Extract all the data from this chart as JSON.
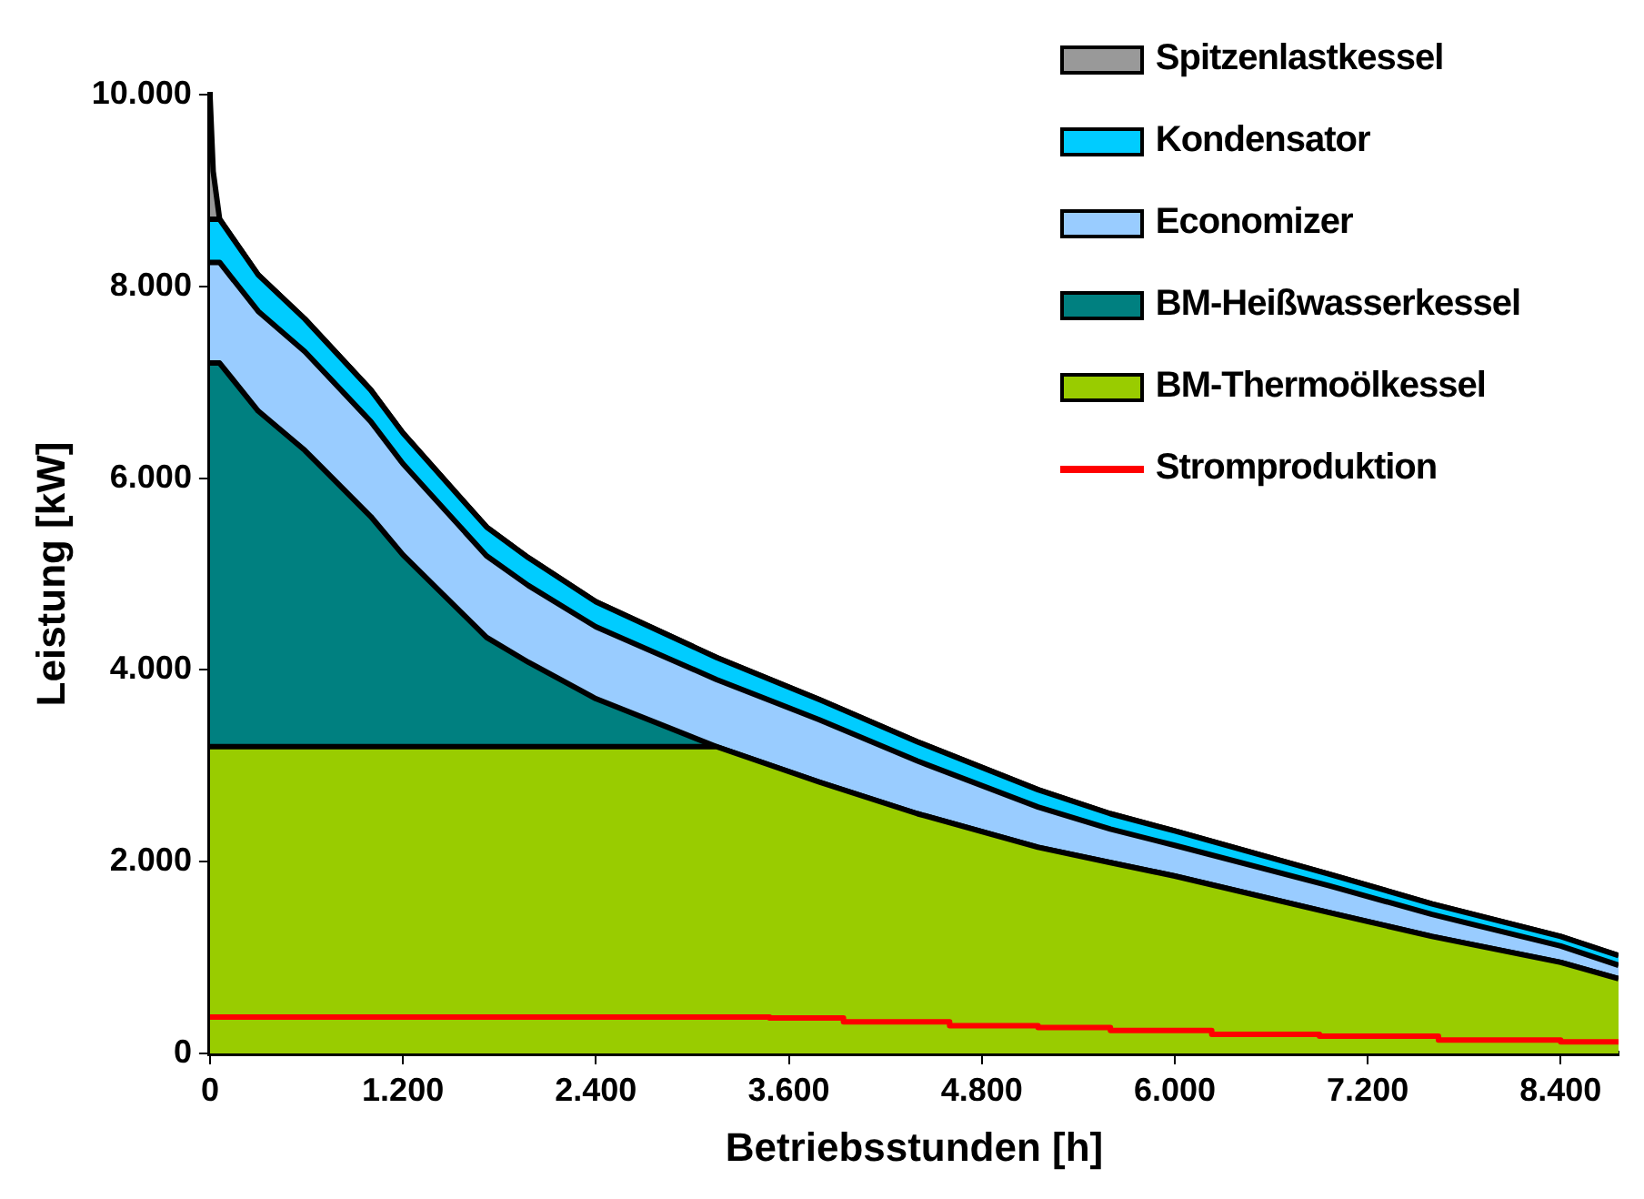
{
  "chart_data": {
    "type": "area",
    "stacked": true,
    "xlabel": "Betriebsstunden [h]",
    "ylabel": "Leistung [kW]",
    "legend": "top right",
    "x": [
      0,
      20,
      60,
      300,
      590,
      1000,
      1200,
      1720,
      1980,
      2400,
      3150,
      3790,
      4400,
      5150,
      5600,
      6000,
      6960,
      7600,
      8400,
      8760
    ],
    "xlim": [
      0,
      8760
    ],
    "xticks": [
      0,
      {
        "value": 1200,
        "label": "1.200"
      },
      {
        "value": 2400,
        "label": "2.400"
      },
      {
        "value": 3600,
        "label": "3.600"
      },
      {
        "value": 4800,
        "label": "4.800"
      },
      {
        "value": 6000,
        "label": "6.000"
      },
      {
        "value": 7200,
        "label": "7.200"
      },
      {
        "value": 8400,
        "label": "8.400"
      }
    ],
    "ylim": [
      0,
      10000
    ],
    "yticks": [
      0,
      {
        "value": 2000,
        "label": "2.000"
      },
      {
        "value": 4000,
        "label": "4.000"
      },
      {
        "value": 6000,
        "label": "6.000"
      },
      {
        "value": 8000,
        "label": "8.000"
      },
      {
        "value": 10000,
        "label": "10.000"
      }
    ],
    "series": [
      {
        "name": "BM-Thermoölkessel",
        "color": "#99cc00",
        "values": [
          3200,
          3200,
          3200,
          3200,
          3200,
          3200,
          3200,
          3200,
          3200,
          3200,
          3200,
          2830,
          2500,
          2150,
          1990,
          1850,
          1470,
          1220,
          950,
          780
        ]
      },
      {
        "name": "BM-Heißwasserkessel",
        "color": "#008080",
        "values": [
          4000,
          4000,
          4000,
          3500,
          3090,
          2400,
          2000,
          1140,
          880,
          500,
          0,
          0,
          0,
          0,
          0,
          0,
          0,
          0,
          0,
          0
        ]
      },
      {
        "name": "Economizer",
        "color": "#99ccff",
        "values": [
          1050,
          1050,
          1050,
          1040,
          1030,
          990,
          950,
          850,
          800,
          750,
          700,
          650,
          550,
          420,
          350,
          320,
          280,
          230,
          170,
          140
        ]
      },
      {
        "name": "Kondensator",
        "color": "#00ccff",
        "values": [
          450,
          450,
          450,
          380,
          340,
          330,
          320,
          300,
          290,
          260,
          230,
          210,
          200,
          180,
          160,
          150,
          120,
          110,
          100,
          100
        ]
      },
      {
        "name": "Spitzenlastkessel",
        "color": "#999999",
        "values": [
          1300,
          500,
          0,
          0,
          0,
          0,
          0,
          0,
          0,
          0,
          0,
          0,
          0,
          0,
          0,
          0,
          0,
          0,
          0,
          0
        ]
      },
      {
        "name": "Stromproduktion",
        "color": "#ff0000",
        "type": "step",
        "x": [
          0,
          3480,
          3940,
          4600,
          5150,
          5600,
          6230,
          6900,
          7640,
          8400,
          8760
        ],
        "values": [
          400,
          380,
          370,
          330,
          290,
          270,
          240,
          200,
          180,
          140,
          120
        ]
      }
    ]
  }
}
